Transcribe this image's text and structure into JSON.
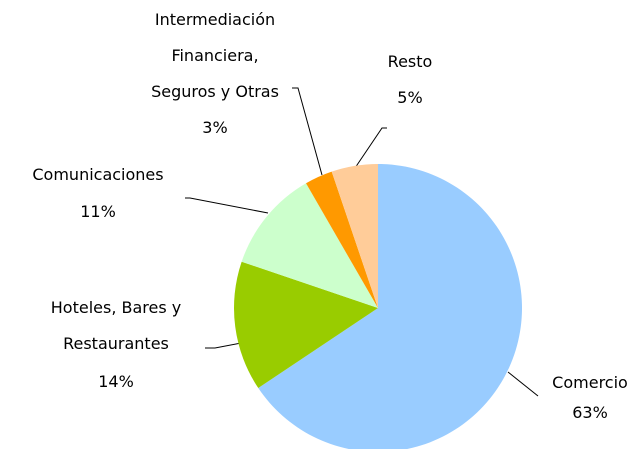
{
  "chart_data": {
    "type": "pie",
    "categories": [
      "Comercio",
      "Hoteles, Bares y\nRestaurantes",
      "Comunicaciones",
      "Intermediación\nFinanciera,\nSeguros y Otras",
      "Resto"
    ],
    "values": [
      63,
      14,
      11,
      3,
      5
    ],
    "value_labels": [
      "63%",
      "14%",
      "11%",
      "3%",
      "5%"
    ],
    "colors": [
      "#99ccff",
      "#99cc00",
      "#ccffcc",
      "#ff9900",
      "#ffcc99"
    ]
  }
}
